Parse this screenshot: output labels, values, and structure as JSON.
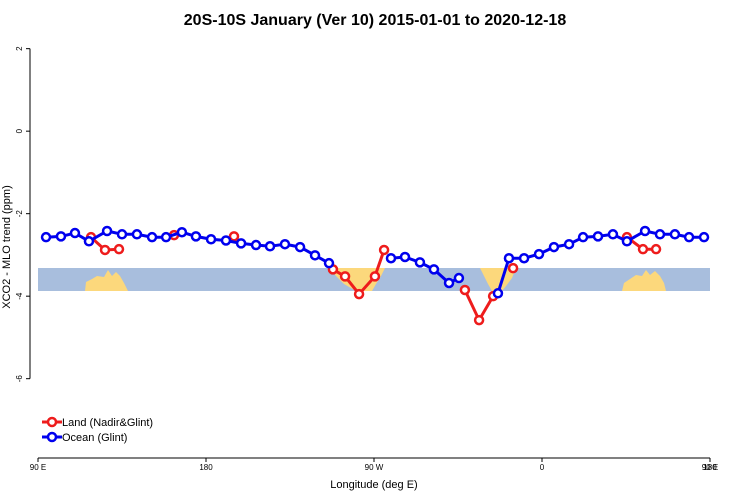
{
  "chart_data": {
    "type": "line",
    "title": "20S-10S January (Ver 10)   2015-01-01 to 2020-12-18",
    "x_label": "Longitude (deg E)",
    "y_label": "XCO2 - MLO trend (ppm)",
    "xlim": [
      90,
      450
    ],
    "xticks": [
      {
        "value": 90,
        "label": "90 E"
      },
      {
        "value": 180,
        "label": "180"
      },
      {
        "value": 270,
        "label": "90 W"
      },
      {
        "value": 360,
        "label": "0"
      },
      {
        "value": 450,
        "label": "90 E"
      },
      {
        "value": 540,
        "label": "180"
      }
    ],
    "ylim": [
      -7.85,
      2.21
    ],
    "yticks": [
      2,
      0,
      -2,
      -4,
      -6
    ],
    "legend": "bottom-left",
    "series": [
      {
        "name": "Land (Nadir&Glint)",
        "color": "#ee1c1c",
        "x": [
          118.4,
          125.9,
          133.4,
          148,
          162.9,
          179,
          195.0,
          221,
          248.0,
          254.5,
          262.0,
          270.5,
          275.4,
          297,
          318.7,
          326.3,
          333.8,
          339,
          344.5,
          375,
          405.5,
          414.1,
          421.1
        ],
        "values": [
          -2.57,
          -2.88,
          -2.86,
          null,
          -2.52,
          null,
          -2.55,
          null,
          -3.35,
          -3.52,
          -3.95,
          -3.52,
          -2.88,
          null,
          -3.85,
          -4.58,
          -4.0,
          null,
          -3.32,
          null,
          -2.57,
          -2.86,
          -2.86
        ]
      },
      {
        "name": "Ocean (Glint)",
        "color": "#0000ee",
        "x": [
          94.3,
          102.3,
          109.8,
          117.3,
          127.0,
          135.0,
          143.0,
          151.1,
          158.6,
          167.1,
          174.6,
          182.7,
          190.7,
          198.8,
          206.8,
          214.3,
          222.3,
          230.4,
          238.4,
          245.9,
          262,
          279.1,
          286.6,
          294.6,
          302.1,
          310.2,
          315.5,
          326,
          336.4,
          342.3,
          350.4,
          358.4,
          366.4,
          374.5,
          382.0,
          390.0,
          398.0,
          405.5,
          415.2,
          423.2,
          431.2,
          438.8,
          446.8
        ],
        "values": [
          -2.57,
          -2.55,
          -2.47,
          -2.67,
          -2.42,
          -2.5,
          -2.5,
          -2.57,
          -2.57,
          -2.45,
          -2.55,
          -2.62,
          -2.65,
          -2.72,
          -2.76,
          -2.79,
          -2.74,
          -2.81,
          -3.01,
          -3.2,
          null,
          -3.08,
          -3.05,
          -3.18,
          -3.35,
          -3.68,
          -3.56,
          null,
          -3.93,
          -3.08,
          -3.08,
          -2.98,
          -2.81,
          -2.74,
          -2.57,
          -2.55,
          -2.5,
          -2.67,
          -2.42,
          -2.5,
          -2.5,
          -2.57,
          -2.57
        ]
      }
    ]
  }
}
